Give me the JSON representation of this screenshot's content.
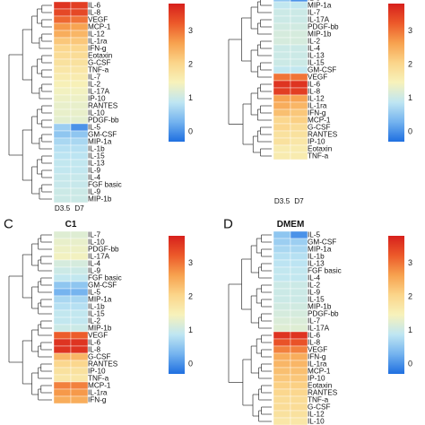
{
  "colors": {
    "scale": [
      "#1f6fe0",
      "#74b3ef",
      "#bfe6f2",
      "#f7f2bb",
      "#fbd58a",
      "#f7a24f",
      "#ec5a2a",
      "#d7201c"
    ],
    "dendrogram": "#333333",
    "cell_border": "#ffffff"
  },
  "colorbar": {
    "ticks": [
      0,
      1,
      2,
      3
    ],
    "range": [
      -0.3,
      3.8
    ]
  },
  "chart_data": [
    {
      "type": "heatmap",
      "panel": "A",
      "letter": "",
      "title": "",
      "columns": [
        "D3.5",
        "D7"
      ],
      "rows": [
        "IL-6",
        "IL-8",
        "VEGF",
        "MCP-1",
        "IL-12",
        "IL-1ra",
        "IFN-g",
        "Eotaxin",
        "G-CSF",
        "TNF-a",
        "IL-7",
        "IL-2",
        "IL-17A",
        "IP-10",
        "RANTES",
        "IL-10",
        "PDGF-bb",
        "IL-5",
        "GM-CSF",
        "MIP-1a",
        "IL-1b",
        "IL-15",
        "IL-13",
        "IL-9",
        "IL-4",
        "FGF basic",
        "IL-9",
        "MIP-1b"
      ],
      "values": [
        [
          3.6,
          3.5
        ],
        [
          3.4,
          3.4
        ],
        [
          3.1,
          3.0
        ],
        [
          2.7,
          2.6
        ],
        [
          2.5,
          2.4
        ],
        [
          2.2,
          2.2
        ],
        [
          2.0,
          2.0
        ],
        [
          1.9,
          1.9
        ],
        [
          1.8,
          1.8
        ],
        [
          1.7,
          1.7
        ],
        [
          1.6,
          1.6
        ],
        [
          1.5,
          1.5
        ],
        [
          1.4,
          1.4
        ],
        [
          1.35,
          1.35
        ],
        [
          1.3,
          1.3
        ],
        [
          1.3,
          1.3
        ],
        [
          1.25,
          1.25
        ],
        [
          0.6,
          0.0
        ],
        [
          0.5,
          0.5
        ],
        [
          0.7,
          0.7
        ],
        [
          0.8,
          0.8
        ],
        [
          0.85,
          0.85
        ],
        [
          0.9,
          0.9
        ],
        [
          0.9,
          0.9
        ],
        [
          0.95,
          0.95
        ],
        [
          0.95,
          0.95
        ],
        [
          1.0,
          1.0
        ],
        [
          1.0,
          1.0
        ]
      ],
      "colorbar_ticks": [
        0,
        1,
        2,
        3
      ]
    },
    {
      "type": "heatmap",
      "panel": "B",
      "letter": "",
      "title": "",
      "columns": [
        "D3.5",
        "D7"
      ],
      "rows": [
        "IL-5",
        "MIP-1a",
        "IL-7",
        "IL-17A",
        "PDGF-bb",
        "MIP-1b",
        "IL-2",
        "IL-4",
        "IL-13",
        "IL-15",
        "GM-CSF",
        "VEGF",
        "IL-6",
        "IL-8",
        "IL-12",
        "IL-1ra",
        "IFN-g",
        "MCP-1",
        "G-CSF",
        "RANTES",
        "IP-10",
        "Eotaxin",
        "TNF-a"
      ],
      "values": [
        [
          0.5,
          0.0
        ],
        [
          0.9,
          0.9
        ],
        [
          1.0,
          1.0
        ],
        [
          1.0,
          1.0
        ],
        [
          1.05,
          1.05
        ],
        [
          1.1,
          1.1
        ],
        [
          1.1,
          1.1
        ],
        [
          1.0,
          1.0
        ],
        [
          1.0,
          1.0
        ],
        [
          1.0,
          1.0
        ],
        [
          0.9,
          0.9
        ],
        [
          3.0,
          3.0
        ],
        [
          3.6,
          3.6
        ],
        [
          3.5,
          3.5
        ],
        [
          2.6,
          2.6
        ],
        [
          2.5,
          2.4
        ],
        [
          2.3,
          2.2
        ],
        [
          2.0,
          2.1
        ],
        [
          2.0,
          1.9
        ],
        [
          1.8,
          1.8
        ],
        [
          1.8,
          1.7
        ],
        [
          1.6,
          1.6
        ],
        [
          1.6,
          1.6
        ]
      ],
      "colorbar_ticks": [
        0,
        1,
        2,
        3
      ]
    },
    {
      "type": "heatmap",
      "panel": "C",
      "letter": "C",
      "title": "C1",
      "columns": [],
      "rows": [
        "IL-7",
        "IL-10",
        "PDGF-bb",
        "IL-17A",
        "IL-4",
        "IL-9",
        "FGF basic",
        "GM-CSF",
        "IL-5",
        "MIP-1a",
        "IL-1b",
        "IL-15",
        "IL-2",
        "MIP-1b",
        "VEGF",
        "IL-6",
        "IL-8",
        "G-CSF",
        "RANTES",
        "IP-10",
        "TNF-a",
        "MCP-1",
        "IL-1ra",
        "IFN-g"
      ],
      "values": [
        [
          1.2,
          1.2
        ],
        [
          1.3,
          1.3
        ],
        [
          1.35,
          1.35
        ],
        [
          1.4,
          1.4
        ],
        [
          1.1,
          1.1
        ],
        [
          1.0,
          1.0
        ],
        [
          0.9,
          0.9
        ],
        [
          0.5,
          0.5
        ],
        [
          0.3,
          0.3
        ],
        [
          0.7,
          0.7
        ],
        [
          0.8,
          0.8
        ],
        [
          0.9,
          0.9
        ],
        [
          0.9,
          0.9
        ],
        [
          1.0,
          1.0
        ],
        [
          3.2,
          3.2
        ],
        [
          3.6,
          3.6
        ],
        [
          3.6,
          3.6
        ],
        [
          2.4,
          2.4
        ],
        [
          2.0,
          2.0
        ],
        [
          1.8,
          1.8
        ],
        [
          1.7,
          1.7
        ],
        [
          2.9,
          2.9
        ],
        [
          2.7,
          2.7
        ],
        [
          2.5,
          2.5
        ]
      ],
      "colorbar_ticks": [
        0,
        1,
        2,
        3
      ]
    },
    {
      "type": "heatmap",
      "panel": "D",
      "letter": "D",
      "title": "DMEM",
      "columns": [],
      "rows": [
        "IL-5",
        "GM-CSF",
        "MIP-1a",
        "IL-1b",
        "IL-13",
        "FGF basic",
        "IL-4",
        "IL-2",
        "IL-9",
        "IL-15",
        "MIP-1b",
        "PDGF-bb",
        "IL-7",
        "IL-17A",
        "IL-6",
        "IL-8",
        "VEGF",
        "IFN-g",
        "IL-1ra",
        "MCP-1",
        "IP-10",
        "Eotaxin",
        "RANTES",
        "TNF-a",
        "G-CSF",
        "IL-12",
        "IL-10"
      ],
      "values": [
        [
          0.5,
          0.0
        ],
        [
          0.6,
          0.6
        ],
        [
          0.7,
          0.7
        ],
        [
          0.8,
          0.8
        ],
        [
          0.85,
          0.85
        ],
        [
          0.9,
          0.9
        ],
        [
          0.9,
          0.9
        ],
        [
          1.0,
          1.0
        ],
        [
          1.0,
          1.0
        ],
        [
          1.0,
          1.0
        ],
        [
          1.05,
          1.05
        ],
        [
          1.1,
          1.1
        ],
        [
          1.15,
          1.15
        ],
        [
          1.2,
          1.2
        ],
        [
          3.6,
          3.6
        ],
        [
          3.3,
          3.3
        ],
        [
          2.9,
          2.9
        ],
        [
          2.5,
          2.5
        ],
        [
          2.4,
          2.4
        ],
        [
          2.3,
          2.3
        ],
        [
          2.2,
          2.2
        ],
        [
          2.1,
          2.1
        ],
        [
          2.0,
          2.0
        ],
        [
          1.9,
          1.9
        ],
        [
          1.9,
          1.9
        ],
        [
          1.8,
          1.8
        ],
        [
          1.7,
          1.7
        ]
      ],
      "colorbar_ticks": [
        0,
        1,
        2,
        3
      ]
    }
  ]
}
